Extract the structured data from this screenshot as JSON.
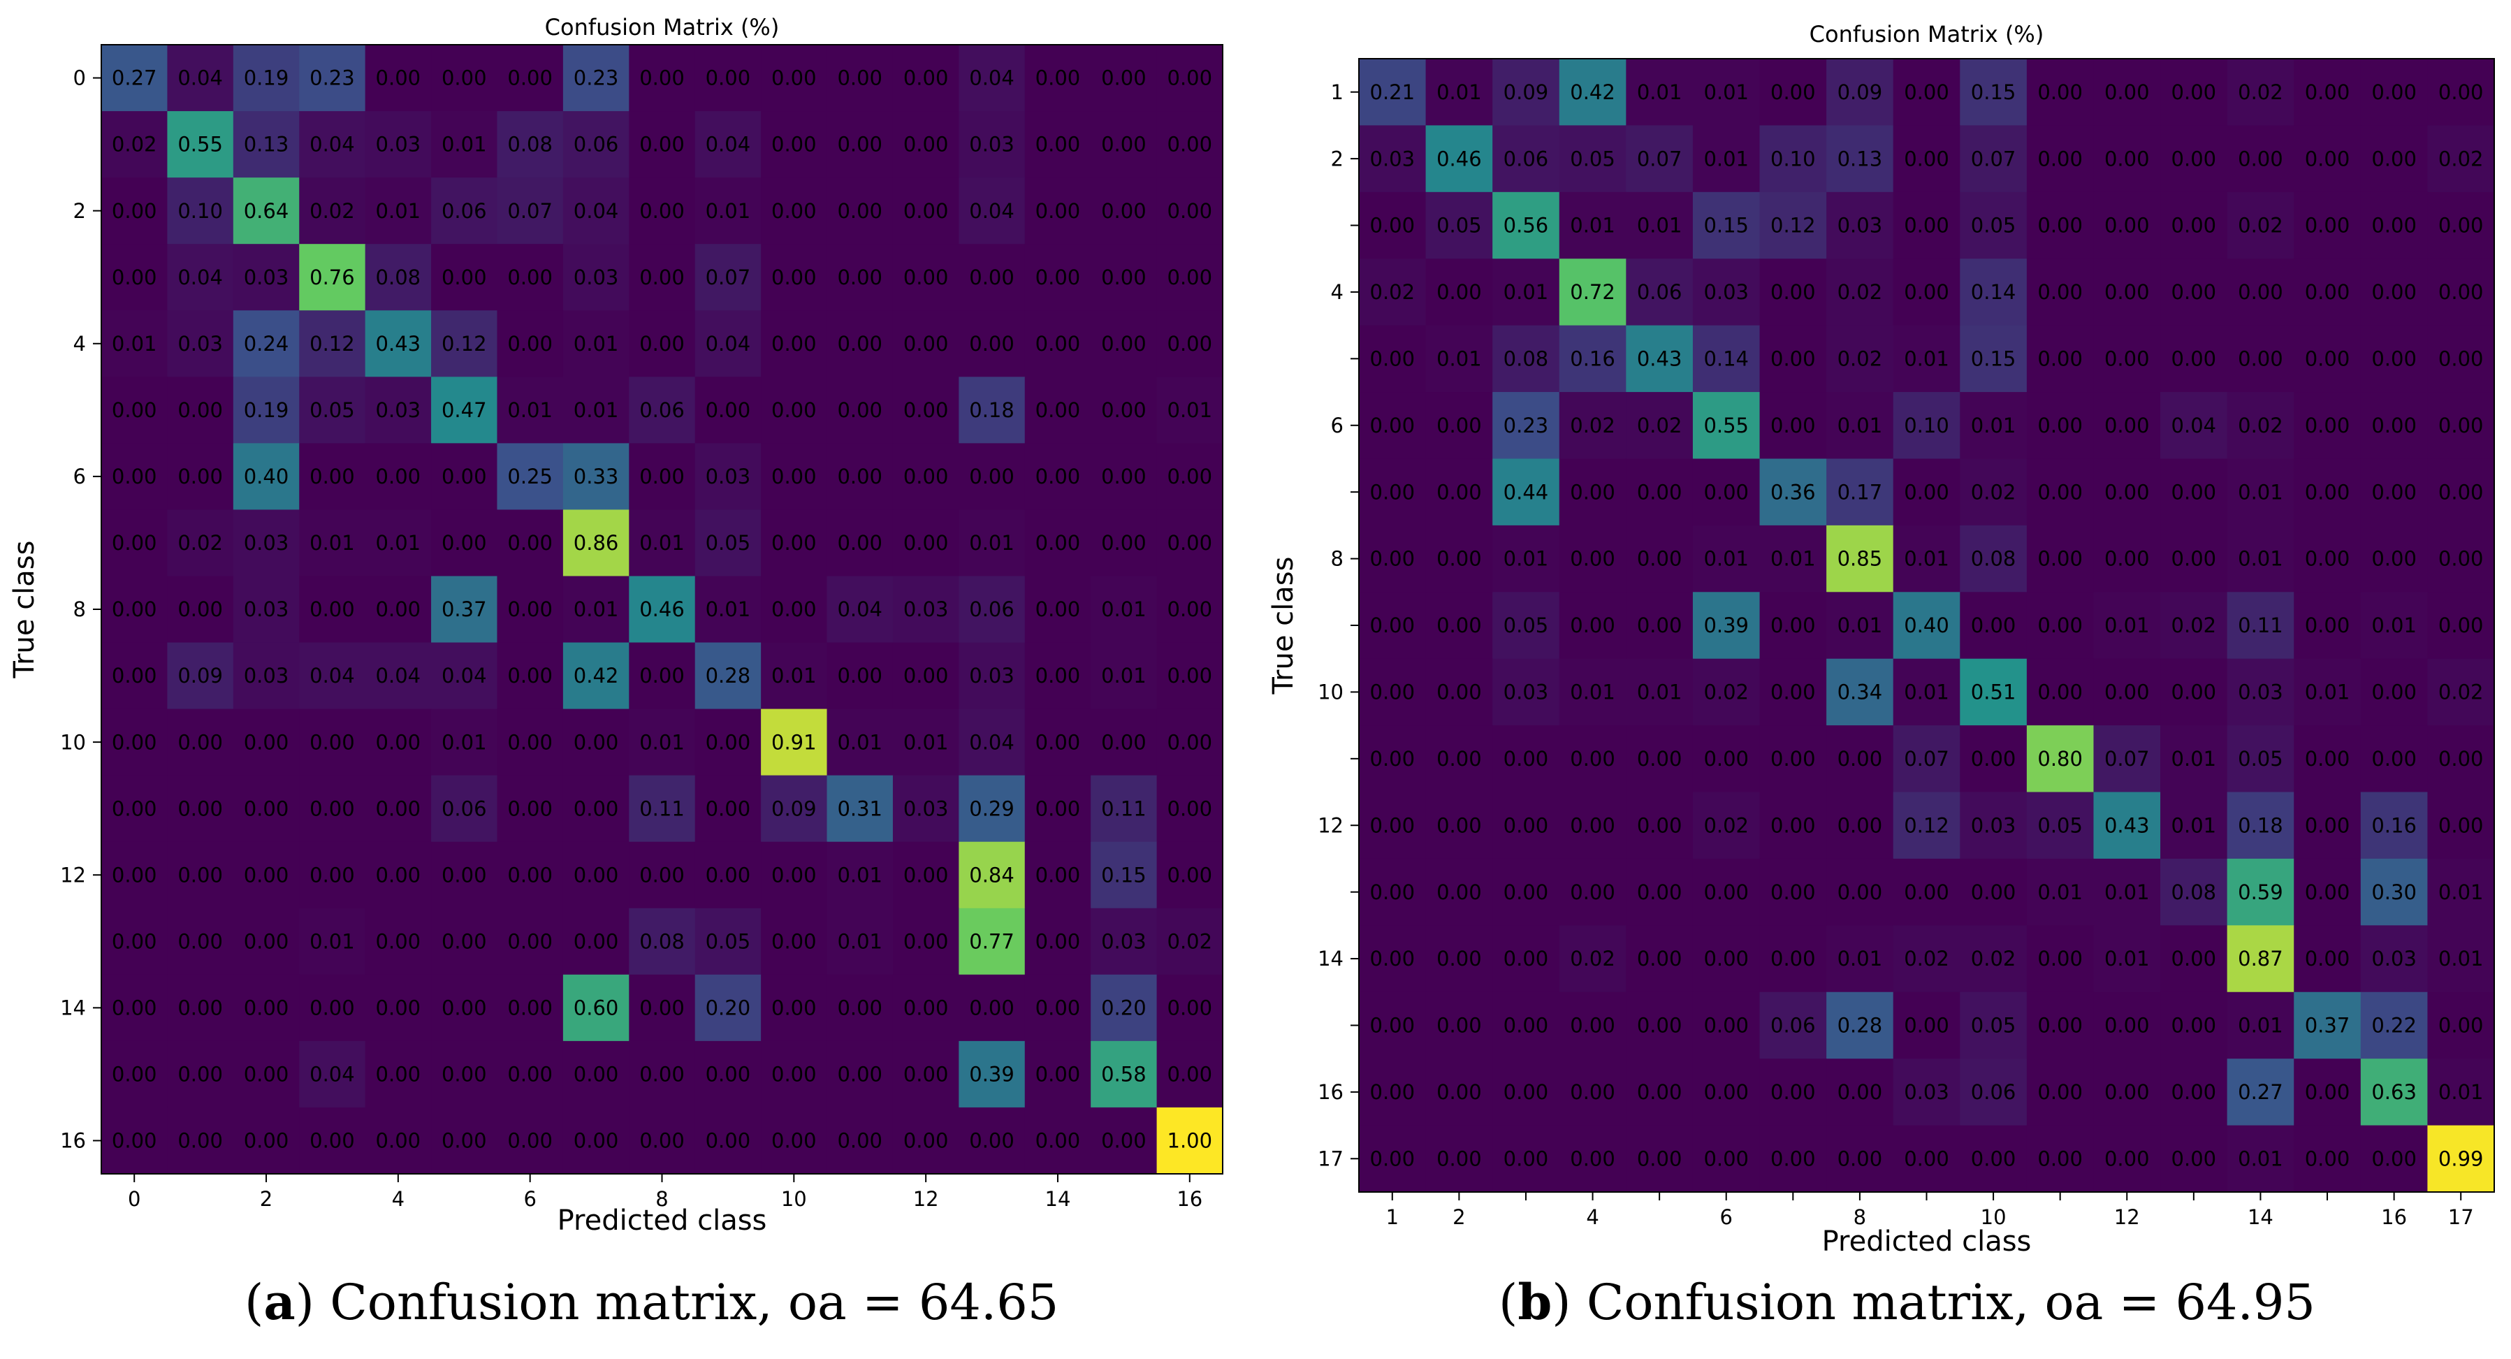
{
  "captions": [
    {
      "label": "a",
      "text": "Confusion matrix, oa = 64.65"
    },
    {
      "label": "b",
      "text": "Confusion matrix, oa = 64.95"
    }
  ],
  "chart_data": [
    {
      "type": "heatmap",
      "title": "Confusion Matrix (%)",
      "xlabel": "Predicted class",
      "ylabel": "True class",
      "colormap": "viridis",
      "vrange": [
        0,
        1
      ],
      "xticks": [
        {
          "i": 0,
          "label": "0"
        },
        {
          "i": 2,
          "label": "2"
        },
        {
          "i": 4,
          "label": "4"
        },
        {
          "i": 6,
          "label": "6"
        },
        {
          "i": 8,
          "label": "8"
        },
        {
          "i": 10,
          "label": "10"
        },
        {
          "i": 12,
          "label": "12"
        },
        {
          "i": 14,
          "label": "14"
        },
        {
          "i": 16,
          "label": "16"
        }
      ],
      "yticks": [
        {
          "i": 0,
          "label": "0"
        },
        {
          "i": 2,
          "label": "2"
        },
        {
          "i": 4,
          "label": "4"
        },
        {
          "i": 6,
          "label": "6"
        },
        {
          "i": 8,
          "label": "8"
        },
        {
          "i": 10,
          "label": "10"
        },
        {
          "i": 12,
          "label": "12"
        },
        {
          "i": 14,
          "label": "14"
        },
        {
          "i": 16,
          "label": "16"
        }
      ],
      "matrix": [
        [
          "0.27",
          "0.04",
          "0.19",
          "0.23",
          "0.00",
          "0.00",
          "0.00",
          "0.23",
          "0.00",
          "0.00",
          "0.00",
          "0.00",
          "0.00",
          "0.04",
          "0.00",
          "0.00",
          "0.00"
        ],
        [
          "0.02",
          "0.55",
          "0.13",
          "0.04",
          "0.03",
          "0.01",
          "0.08",
          "0.06",
          "0.00",
          "0.04",
          "0.00",
          "0.00",
          "0.00",
          "0.03",
          "0.00",
          "0.00",
          "0.00"
        ],
        [
          "0.00",
          "0.10",
          "0.64",
          "0.02",
          "0.01",
          "0.06",
          "0.07",
          "0.04",
          "0.00",
          "0.01",
          "0.00",
          "0.00",
          "0.00",
          "0.04",
          "0.00",
          "0.00",
          "0.00"
        ],
        [
          "0.00",
          "0.04",
          "0.03",
          "0.76",
          "0.08",
          "0.00",
          "0.00",
          "0.03",
          "0.00",
          "0.07",
          "0.00",
          "0.00",
          "0.00",
          "0.00",
          "0.00",
          "0.00",
          "0.00"
        ],
        [
          "0.01",
          "0.03",
          "0.24",
          "0.12",
          "0.43",
          "0.12",
          "0.00",
          "0.01",
          "0.00",
          "0.04",
          "0.00",
          "0.00",
          "0.00",
          "0.00",
          "0.00",
          "0.00",
          "0.00"
        ],
        [
          "0.00",
          "0.00",
          "0.19",
          "0.05",
          "0.03",
          "0.47",
          "0.01",
          "0.01",
          "0.06",
          "0.00",
          "0.00",
          "0.00",
          "0.00",
          "0.18",
          "0.00",
          "0.00",
          "0.01"
        ],
        [
          "0.00",
          "0.00",
          "0.40",
          "0.00",
          "0.00",
          "0.00",
          "0.25",
          "0.33",
          "0.00",
          "0.03",
          "0.00",
          "0.00",
          "0.00",
          "0.00",
          "0.00",
          "0.00",
          "0.00"
        ],
        [
          "0.00",
          "0.02",
          "0.03",
          "0.01",
          "0.01",
          "0.00",
          "0.00",
          "0.86",
          "0.01",
          "0.05",
          "0.00",
          "0.00",
          "0.00",
          "0.01",
          "0.00",
          "0.00",
          "0.00"
        ],
        [
          "0.00",
          "0.00",
          "0.03",
          "0.00",
          "0.00",
          "0.37",
          "0.00",
          "0.01",
          "0.46",
          "0.01",
          "0.00",
          "0.04",
          "0.03",
          "0.06",
          "0.00",
          "0.01",
          "0.00"
        ],
        [
          "0.00",
          "0.09",
          "0.03",
          "0.04",
          "0.04",
          "0.04",
          "0.00",
          "0.42",
          "0.00",
          "0.28",
          "0.01",
          "0.00",
          "0.00",
          "0.03",
          "0.00",
          "0.01",
          "0.00"
        ],
        [
          "0.00",
          "0.00",
          "0.00",
          "0.00",
          "0.00",
          "0.01",
          "0.00",
          "0.00",
          "0.01",
          "0.00",
          "0.91",
          "0.01",
          "0.01",
          "0.04",
          "0.00",
          "0.00",
          "0.00"
        ],
        [
          "0.00",
          "0.00",
          "0.00",
          "0.00",
          "0.00",
          "0.06",
          "0.00",
          "0.00",
          "0.11",
          "0.00",
          "0.09",
          "0.31",
          "0.03",
          "0.29",
          "0.00",
          "0.11",
          "0.00"
        ],
        [
          "0.00",
          "0.00",
          "0.00",
          "0.00",
          "0.00",
          "0.00",
          "0.00",
          "0.00",
          "0.00",
          "0.00",
          "0.00",
          "0.01",
          "0.00",
          "0.84",
          "0.00",
          "0.15",
          "0.00"
        ],
        [
          "0.00",
          "0.00",
          "0.00",
          "0.01",
          "0.00",
          "0.00",
          "0.00",
          "0.00",
          "0.08",
          "0.05",
          "0.00",
          "0.01",
          "0.00",
          "0.77",
          "0.00",
          "0.03",
          "0.02"
        ],
        [
          "0.00",
          "0.00",
          "0.00",
          "0.00",
          "0.00",
          "0.00",
          "0.00",
          "0.60",
          "0.00",
          "0.20",
          "0.00",
          "0.00",
          "0.00",
          "0.00",
          "0.00",
          "0.20",
          "0.00"
        ],
        [
          "0.00",
          "0.00",
          "0.00",
          "0.04",
          "0.00",
          "0.00",
          "0.00",
          "0.00",
          "0.00",
          "0.00",
          "0.00",
          "0.00",
          "0.00",
          "0.39",
          "0.00",
          "0.58",
          "0.00"
        ],
        [
          "0.00",
          "0.00",
          "0.00",
          "0.00",
          "0.00",
          "0.00",
          "0.00",
          "0.00",
          "0.00",
          "0.00",
          "0.00",
          "0.00",
          "0.00",
          "0.00",
          "0.00",
          "0.00",
          "1.00"
        ]
      ]
    },
    {
      "type": "heatmap",
      "title": "Confusion Matrix (%)",
      "xlabel": "Predicted class",
      "ylabel": "True class",
      "colormap": "viridis",
      "vrange": [
        0,
        1
      ],
      "xticks": [
        {
          "i": 0,
          "label": "1"
        },
        {
          "i": 1,
          "label": "2"
        },
        {
          "i": 2,
          "label": ""
        },
        {
          "i": 3,
          "label": "4"
        },
        {
          "i": 4,
          "label": ""
        },
        {
          "i": 5,
          "label": "6"
        },
        {
          "i": 6,
          "label": ""
        },
        {
          "i": 7,
          "label": "8"
        },
        {
          "i": 8,
          "label": ""
        },
        {
          "i": 9,
          "label": "10"
        },
        {
          "i": 10,
          "label": ""
        },
        {
          "i": 11,
          "label": "12"
        },
        {
          "i": 12,
          "label": ""
        },
        {
          "i": 13,
          "label": "14"
        },
        {
          "i": 14,
          "label": ""
        },
        {
          "i": 15,
          "label": "16"
        },
        {
          "i": 16,
          "label": "17"
        }
      ],
      "yticks": [
        {
          "i": 0,
          "label": "1"
        },
        {
          "i": 1,
          "label": "2"
        },
        {
          "i": 2,
          "label": ""
        },
        {
          "i": 3,
          "label": "4"
        },
        {
          "i": 4,
          "label": ""
        },
        {
          "i": 5,
          "label": "6"
        },
        {
          "i": 6,
          "label": ""
        },
        {
          "i": 7,
          "label": "8"
        },
        {
          "i": 8,
          "label": ""
        },
        {
          "i": 9,
          "label": "10"
        },
        {
          "i": 10,
          "label": ""
        },
        {
          "i": 11,
          "label": "12"
        },
        {
          "i": 12,
          "label": ""
        },
        {
          "i": 13,
          "label": "14"
        },
        {
          "i": 14,
          "label": ""
        },
        {
          "i": 15,
          "label": "16"
        },
        {
          "i": 16,
          "label": "17"
        }
      ],
      "matrix": [
        [
          "0.21",
          "0.01",
          "0.09",
          "0.42",
          "0.01",
          "0.01",
          "0.00",
          "0.09",
          "0.00",
          "0.15",
          "0.00",
          "0.00",
          "0.00",
          "0.02",
          "0.00",
          "0.00",
          "0.00"
        ],
        [
          "0.03",
          "0.46",
          "0.06",
          "0.05",
          "0.07",
          "0.01",
          "0.10",
          "0.13",
          "0.00",
          "0.07",
          "0.00",
          "0.00",
          "0.00",
          "0.00",
          "0.00",
          "0.00",
          "0.02"
        ],
        [
          "0.00",
          "0.05",
          "0.56",
          "0.01",
          "0.01",
          "0.15",
          "0.12",
          "0.03",
          "0.00",
          "0.05",
          "0.00",
          "0.00",
          "0.00",
          "0.02",
          "0.00",
          "0.00",
          "0.00"
        ],
        [
          "0.02",
          "0.00",
          "0.01",
          "0.72",
          "0.06",
          "0.03",
          "0.00",
          "0.02",
          "0.00",
          "0.14",
          "0.00",
          "0.00",
          "0.00",
          "0.00",
          "0.00",
          "0.00",
          "0.00"
        ],
        [
          "0.00",
          "0.01",
          "0.08",
          "0.16",
          "0.43",
          "0.14",
          "0.00",
          "0.02",
          "0.01",
          "0.15",
          "0.00",
          "0.00",
          "0.00",
          "0.00",
          "0.00",
          "0.00",
          "0.00"
        ],
        [
          "0.00",
          "0.00",
          "0.23",
          "0.02",
          "0.02",
          "0.55",
          "0.00",
          "0.01",
          "0.10",
          "0.01",
          "0.00",
          "0.00",
          "0.04",
          "0.02",
          "0.00",
          "0.00",
          "0.00"
        ],
        [
          "0.00",
          "0.00",
          "0.44",
          "0.00",
          "0.00",
          "0.00",
          "0.36",
          "0.17",
          "0.00",
          "0.02",
          "0.00",
          "0.00",
          "0.00",
          "0.01",
          "0.00",
          "0.00",
          "0.00"
        ],
        [
          "0.00",
          "0.00",
          "0.01",
          "0.00",
          "0.00",
          "0.01",
          "0.01",
          "0.85",
          "0.01",
          "0.08",
          "0.00",
          "0.00",
          "0.00",
          "0.01",
          "0.00",
          "0.00",
          "0.00"
        ],
        [
          "0.00",
          "0.00",
          "0.05",
          "0.00",
          "0.00",
          "0.39",
          "0.00",
          "0.01",
          "0.40",
          "0.00",
          "0.00",
          "0.01",
          "0.02",
          "0.11",
          "0.00",
          "0.01",
          "0.00"
        ],
        [
          "0.00",
          "0.00",
          "0.03",
          "0.01",
          "0.01",
          "0.02",
          "0.00",
          "0.34",
          "0.01",
          "0.51",
          "0.00",
          "0.00",
          "0.00",
          "0.03",
          "0.01",
          "0.00",
          "0.02"
        ],
        [
          "0.00",
          "0.00",
          "0.00",
          "0.00",
          "0.00",
          "0.00",
          "0.00",
          "0.00",
          "0.07",
          "0.00",
          "0.80",
          "0.07",
          "0.01",
          "0.05",
          "0.00",
          "0.00",
          "0.00"
        ],
        [
          "0.00",
          "0.00",
          "0.00",
          "0.00",
          "0.00",
          "0.02",
          "0.00",
          "0.00",
          "0.12",
          "0.03",
          "0.05",
          "0.43",
          "0.01",
          "0.18",
          "0.00",
          "0.16",
          "0.00"
        ],
        [
          "0.00",
          "0.00",
          "0.00",
          "0.00",
          "0.00",
          "0.00",
          "0.00",
          "0.00",
          "0.00",
          "0.00",
          "0.01",
          "0.01",
          "0.08",
          "0.59",
          "0.00",
          "0.30",
          "0.01"
        ],
        [
          "0.00",
          "0.00",
          "0.00",
          "0.02",
          "0.00",
          "0.00",
          "0.00",
          "0.01",
          "0.02",
          "0.02",
          "0.00",
          "0.01",
          "0.00",
          "0.87",
          "0.00",
          "0.03",
          "0.01"
        ],
        [
          "0.00",
          "0.00",
          "0.00",
          "0.00",
          "0.00",
          "0.00",
          "0.06",
          "0.28",
          "0.00",
          "0.05",
          "0.00",
          "0.00",
          "0.00",
          "0.01",
          "0.37",
          "0.22",
          "0.00"
        ],
        [
          "0.00",
          "0.00",
          "0.00",
          "0.00",
          "0.00",
          "0.00",
          "0.00",
          "0.00",
          "0.03",
          "0.06",
          "0.00",
          "0.00",
          "0.00",
          "0.27",
          "0.00",
          "0.63",
          "0.01"
        ],
        [
          "0.00",
          "0.00",
          "0.00",
          "0.00",
          "0.00",
          "0.00",
          "0.00",
          "0.00",
          "0.00",
          "0.00",
          "0.00",
          "0.00",
          "0.00",
          "0.01",
          "0.00",
          "0.00",
          "0.99"
        ]
      ]
    }
  ]
}
